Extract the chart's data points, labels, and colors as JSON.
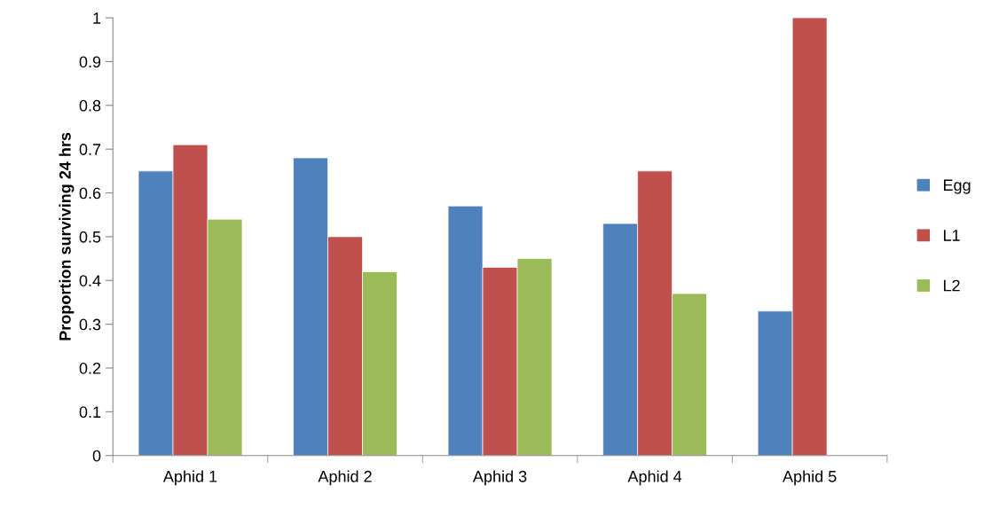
{
  "chart_data": {
    "type": "bar",
    "ylabel": "Proportion surviving 24 hrs",
    "categories": [
      "Aphid 1",
      "Aphid 2",
      "Aphid 3",
      "Aphid 4",
      "Aphid 5"
    ],
    "series": [
      {
        "name": "Egg",
        "color": "#4f81bd",
        "values": [
          0.65,
          0.68,
          0.57,
          0.53,
          0.33
        ]
      },
      {
        "name": "L1",
        "color": "#c0504d",
        "values": [
          0.71,
          0.5,
          0.43,
          0.65,
          1.0
        ]
      },
      {
        "name": "L2",
        "color": "#9bbb59",
        "values": [
          0.54,
          0.42,
          0.45,
          0.37,
          null
        ]
      }
    ],
    "ylim": [
      0,
      1
    ],
    "yticks": [
      0,
      0.1,
      0.2,
      0.3,
      0.4,
      0.5,
      0.6,
      0.7,
      0.8,
      0.9,
      1
    ],
    "grid": false,
    "legend": "right"
  }
}
